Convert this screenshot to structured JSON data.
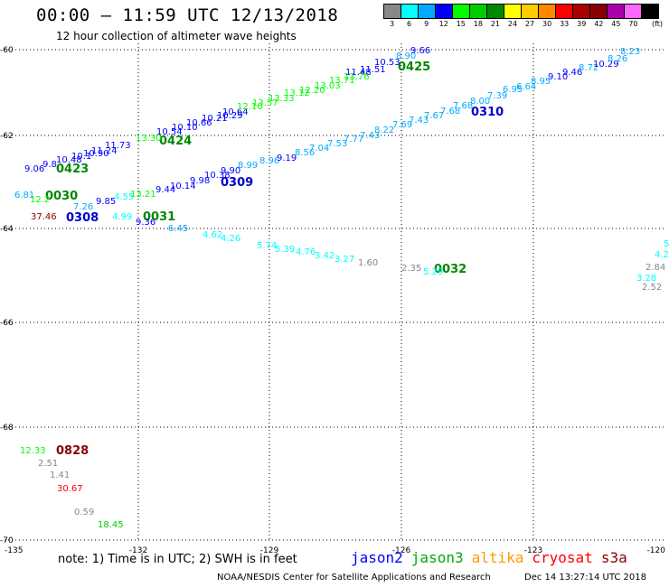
{
  "header": {
    "title": "00:00 – 11:59 UTC 12/13/2018",
    "subtitle": "12 hour collection of altimeter wave heights"
  },
  "legend": {
    "unit": "(ft)",
    "bins": [
      {
        "label": "3",
        "color": "#888888"
      },
      {
        "label": "6",
        "color": "#00ffff"
      },
      {
        "label": "9",
        "color": "#00aaff"
      },
      {
        "label": "12",
        "color": "#0000ff"
      },
      {
        "label": "15",
        "color": "#00ff00"
      },
      {
        "label": "18",
        "color": "#00cc00"
      },
      {
        "label": "21",
        "color": "#008800"
      },
      {
        "label": "24",
        "color": "#ffff00"
      },
      {
        "label": "27",
        "color": "#ffcc00"
      },
      {
        "label": "30",
        "color": "#ff8800"
      },
      {
        "label": "33",
        "color": "#ff0000"
      },
      {
        "label": "39",
        "color": "#aa0000"
      },
      {
        "label": "42",
        "color": "#880000"
      },
      {
        "label": "45",
        "color": "#aa00aa"
      },
      {
        "label": "70",
        "color": "#ff66ff"
      },
      {
        "label": "",
        "color": "#000000"
      }
    ]
  },
  "axes": {
    "lon_labels": [
      "-135",
      "-132",
      "-129",
      "-126",
      "-123",
      "-120"
    ],
    "lat_labels": [
      "-60",
      "-62",
      "-64",
      "-66",
      "-68",
      "-70"
    ]
  },
  "passes": [
    {
      "label": "0423",
      "color": "#008800"
    },
    {
      "label": "0424",
      "color": "#008800"
    },
    {
      "label": "0425",
      "color": "#008800"
    },
    {
      "label": "0309",
      "color": "#0000cc"
    },
    {
      "label": "0310",
      "color": "#0000cc"
    },
    {
      "label": "0308",
      "color": "#0000cc"
    },
    {
      "label": "0030",
      "color": "#008800"
    },
    {
      "label": "0031",
      "color": "#008800"
    },
    {
      "label": "0032",
      "color": "#008800"
    },
    {
      "label": "0828",
      "color": "#880000"
    }
  ],
  "observations": [
    {
      "v": "9.06",
      "c": "#0000ff"
    },
    {
      "v": "9.8",
      "c": "#0000ff"
    },
    {
      "v": "10.48",
      "c": "#0000ff"
    },
    {
      "v": "10.1",
      "c": "#0000ff"
    },
    {
      "v": "10.90",
      "c": "#0000ff"
    },
    {
      "v": "11.24",
      "c": "#0000ff"
    },
    {
      "v": "11.73",
      "c": "#0000ff"
    },
    {
      "v": "13.30",
      "c": "#00ff00"
    },
    {
      "v": "10.54",
      "c": "#0000ff"
    },
    {
      "v": "10.10",
      "c": "#0000ff"
    },
    {
      "v": "10.66",
      "c": "#0000ff"
    },
    {
      "v": "10.21",
      "c": "#0000ff"
    },
    {
      "v": "10.29",
      "c": "#0000ff"
    },
    {
      "v": "10.64",
      "c": "#0000ff"
    },
    {
      "v": "12.10",
      "c": "#00ff00"
    },
    {
      "v": "13.57",
      "c": "#00ff00"
    },
    {
      "v": "13.33",
      "c": "#00ff00"
    },
    {
      "v": "13.12",
      "c": "#00ff00"
    },
    {
      "v": "12.20",
      "c": "#00ff00"
    },
    {
      "v": "13.03",
      "c": "#00ff00"
    },
    {
      "v": "13.71",
      "c": "#00ff00"
    },
    {
      "v": "13.76",
      "c": "#00ff00"
    },
    {
      "v": "11.48",
      "c": "#0000ff"
    },
    {
      "v": "11.51",
      "c": "#0000ff"
    },
    {
      "v": "10.53",
      "c": "#0000ff"
    },
    {
      "v": "8.90",
      "c": "#00aaff"
    },
    {
      "v": "9.66",
      "c": "#0000ff"
    },
    {
      "v": "9.44",
      "c": "#0000ff"
    },
    {
      "v": "10.14",
      "c": "#0000ff"
    },
    {
      "v": "9.98",
      "c": "#0000ff"
    },
    {
      "v": "10.38",
      "c": "#0000ff"
    },
    {
      "v": "9.90",
      "c": "#0000ff"
    },
    {
      "v": "8.99",
      "c": "#00aaff"
    },
    {
      "v": "8.96",
      "c": "#00aaff"
    },
    {
      "v": "9.19",
      "c": "#0000ff"
    },
    {
      "v": "8.56",
      "c": "#00aaff"
    },
    {
      "v": "7.04",
      "c": "#00aaff"
    },
    {
      "v": "7.53",
      "c": "#00aaff"
    },
    {
      "v": "7.77",
      "c": "#00aaff"
    },
    {
      "v": "7.43",
      "c": "#00aaff"
    },
    {
      "v": "8.22",
      "c": "#00aaff"
    },
    {
      "v": "7.69",
      "c": "#00aaff"
    },
    {
      "v": "7.43",
      "c": "#00aaff"
    },
    {
      "v": "7.67",
      "c": "#00aaff"
    },
    {
      "v": "7.68",
      "c": "#00aaff"
    },
    {
      "v": "7.68",
      "c": "#00aaff"
    },
    {
      "v": "8.00",
      "c": "#00aaff"
    },
    {
      "v": "7.39",
      "c": "#00aaff"
    },
    {
      "v": "6.95",
      "c": "#00aaff"
    },
    {
      "v": "6.64",
      "c": "#00aaff"
    },
    {
      "v": "8.95",
      "c": "#00aaff"
    },
    {
      "v": "9.10",
      "c": "#0000ff"
    },
    {
      "v": "9.46",
      "c": "#0000ff"
    },
    {
      "v": "8.72",
      "c": "#00aaff"
    },
    {
      "v": "10.29",
      "c": "#0000ff"
    },
    {
      "v": "8.26",
      "c": "#00aaff"
    },
    {
      "v": "8.23",
      "c": "#00aaff"
    },
    {
      "v": "6.81",
      "c": "#00aaff"
    },
    {
      "v": "12.2",
      "c": "#00ff00"
    },
    {
      "v": "7.26",
      "c": "#00aaff"
    },
    {
      "v": "9.85",
      "c": "#0000ff"
    },
    {
      "v": "4.55",
      "c": "#00ffff"
    },
    {
      "v": "13.21",
      "c": "#00ff00"
    },
    {
      "v": "37.46",
      "c": "#880000"
    },
    {
      "v": "4.99",
      "c": "#00ffff"
    },
    {
      "v": "9.36",
      "c": "#0000ff"
    },
    {
      "v": "6.45",
      "c": "#00aaff"
    },
    {
      "v": "4.62",
      "c": "#00ffff"
    },
    {
      "v": "4.26",
      "c": "#00ffff"
    },
    {
      "v": "5.74",
      "c": "#00ffff"
    },
    {
      "v": "5.39",
      "c": "#00ffff"
    },
    {
      "v": "4.76",
      "c": "#00ffff"
    },
    {
      "v": "3.42",
      "c": "#00ffff"
    },
    {
      "v": "3.27",
      "c": "#00ffff"
    },
    {
      "v": "1.60",
      "c": "#888888"
    },
    {
      "v": "2.35",
      "c": "#888888"
    },
    {
      "v": "5.29",
      "c": "#00ffff"
    },
    {
      "v": "5",
      "c": "#00ffff"
    },
    {
      "v": "4.2",
      "c": "#00ffff"
    },
    {
      "v": "2.84",
      "c": "#888888"
    },
    {
      "v": "3.28",
      "c": "#00ffff"
    },
    {
      "v": "2.52",
      "c": "#888888"
    },
    {
      "v": "12.33",
      "c": "#00ff00"
    },
    {
      "v": "2.51",
      "c": "#888888"
    },
    {
      "v": "1.41",
      "c": "#888888"
    },
    {
      "v": "30.67",
      "c": "#ff0000"
    },
    {
      "v": "0.59",
      "c": "#888888"
    },
    {
      "v": "18.45",
      "c": "#00cc00"
    }
  ],
  "footer": {
    "note": "note: 1) Time is in UTC; 2) SWH is in feet",
    "satellites": [
      {
        "name": "jason2",
        "color": "#0000ff"
      },
      {
        "name": "jason3",
        "color": "#00aa00"
      },
      {
        "name": "altika",
        "color": "#ff9900"
      },
      {
        "name": "cryosat",
        "color": "#ff0000"
      },
      {
        "name": "s3a",
        "color": "#880000"
      }
    ],
    "credit": "NOAA/NESDIS Center for Satellite Applications and Research",
    "timestamp": "Dec 14 13:27:14 UTC 2018"
  }
}
